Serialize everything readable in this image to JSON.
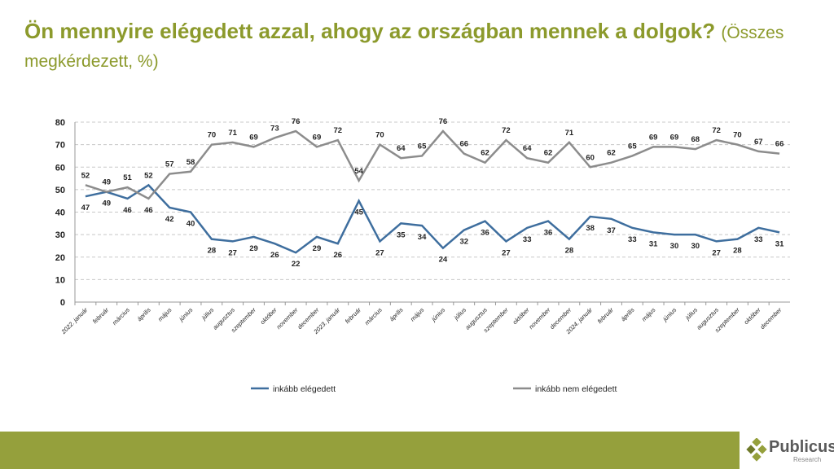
{
  "title": {
    "main": "Ön mennyire elégedett azzal, ahogy az országban mennek a dolgok?",
    "sub": "(Összes megkérdezett, %)"
  },
  "logo": {
    "name": "Publicus",
    "sub": "Research"
  },
  "colors": {
    "satisfied": "#3e6e9e",
    "not_satisfied": "#8c8c8c",
    "title": "#8c9a2c",
    "footer": "#95a03c"
  },
  "chart_data": {
    "type": "line",
    "title": "Ön mennyire elégedett azzal, ahogy az országban mennek a dolgok?",
    "xlabel": "",
    "ylabel": "",
    "ylim": [
      0,
      80
    ],
    "yticks": [
      0,
      10,
      20,
      30,
      40,
      50,
      60,
      70,
      80
    ],
    "grid": true,
    "legend": "bottom",
    "categories": [
      "2022. január",
      "február",
      "március",
      "április",
      "május",
      "június",
      "július",
      "augusztus",
      "szeptember",
      "október",
      "november",
      "december",
      "2023. január",
      "február",
      "március",
      "április",
      "május",
      "június",
      "július",
      "augusztus",
      "szeptember",
      "október",
      "november",
      "december",
      "2024. január",
      "február",
      "április",
      "május",
      "június",
      "július",
      "augusztus",
      "szeptember",
      "október",
      "december"
    ],
    "series": [
      {
        "name": "inkább elégedett",
        "color": "#3e6e9e",
        "values": [
          47,
          49,
          46,
          52,
          42,
          40,
          28,
          27,
          29,
          26,
          22,
          29,
          26,
          45,
          27,
          35,
          34,
          24,
          32,
          36,
          27,
          33,
          36,
          28,
          38,
          37,
          33,
          31,
          30,
          30,
          27,
          28,
          33,
          31
        ]
      },
      {
        "name": "inkább nem elégedett",
        "color": "#8c8c8c",
        "values": [
          52,
          49,
          51,
          46,
          57,
          58,
          70,
          71,
          69,
          73,
          76,
          69,
          72,
          54,
          70,
          64,
          65,
          76,
          66,
          62,
          72,
          64,
          62,
          71,
          60,
          62,
          65,
          69,
          69,
          68,
          72,
          70,
          67,
          66
        ]
      }
    ]
  }
}
